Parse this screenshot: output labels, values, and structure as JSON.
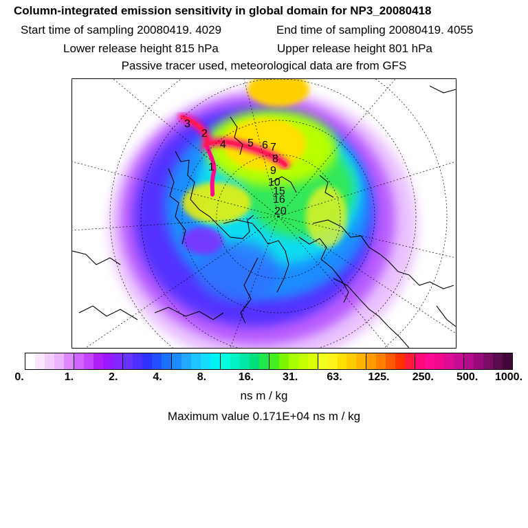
{
  "header": {
    "title": "Column-integrated emission sensitivity in global domain for NP3_20080418",
    "start_label": "Start time of sampling 20080419.  4029",
    "end_label": "End time of sampling 20080419.  4055",
    "lower_label": "Lower release height  815 hPa",
    "upper_label": "Upper release height  801 hPa",
    "tracer_note": "Passive tracer used, meteorological data are from GFS"
  },
  "map": {
    "trajectory_labels": [
      "1",
      "2",
      "3",
      "4",
      "5",
      "6",
      "7",
      "8",
      "9",
      "10",
      "15",
      "16",
      "20"
    ]
  },
  "legend": {
    "ticks": [
      "0.",
      "1.",
      "2.",
      "4.",
      "8.",
      "16.",
      "31.",
      "63.",
      "125.",
      "250.",
      "500.",
      "1000."
    ],
    "colors": [
      "#ffffff",
      "#fbe6ff",
      "#f4ccff",
      "#ecb2ff",
      "#de88ff",
      "#d066ff",
      "#c444ff",
      "#b01ef8",
      "#9a18ff",
      "#8426ff",
      "#6633ff",
      "#4d2dff",
      "#2c32ff",
      "#2050ff",
      "#1a70ff",
      "#1a8cff",
      "#22a9ff",
      "#1ec4ff",
      "#13dcff",
      "#00f2f2",
      "#00ffe0",
      "#00f2c4",
      "#00e8a4",
      "#00e07c",
      "#20e84a",
      "#44f020",
      "#7cf500",
      "#a8ff00",
      "#c2ff00",
      "#daff00",
      "#f0ff20",
      "#fff31a",
      "#ffe000",
      "#ffcc00",
      "#ffb500",
      "#ff9d00",
      "#ff8000",
      "#ff5a00",
      "#ff3300",
      "#ff1a3a",
      "#ff0a78",
      "#ff0a94",
      "#f2088e",
      "#de0c94",
      "#c80c96",
      "#b40a8c",
      "#9a0a7a",
      "#7a0c66",
      "#5a0a4e",
      "#420838"
    ],
    "units": "ns m / kg",
    "max_value": "Maximum value  0.171E+04 ns m / kg"
  }
}
